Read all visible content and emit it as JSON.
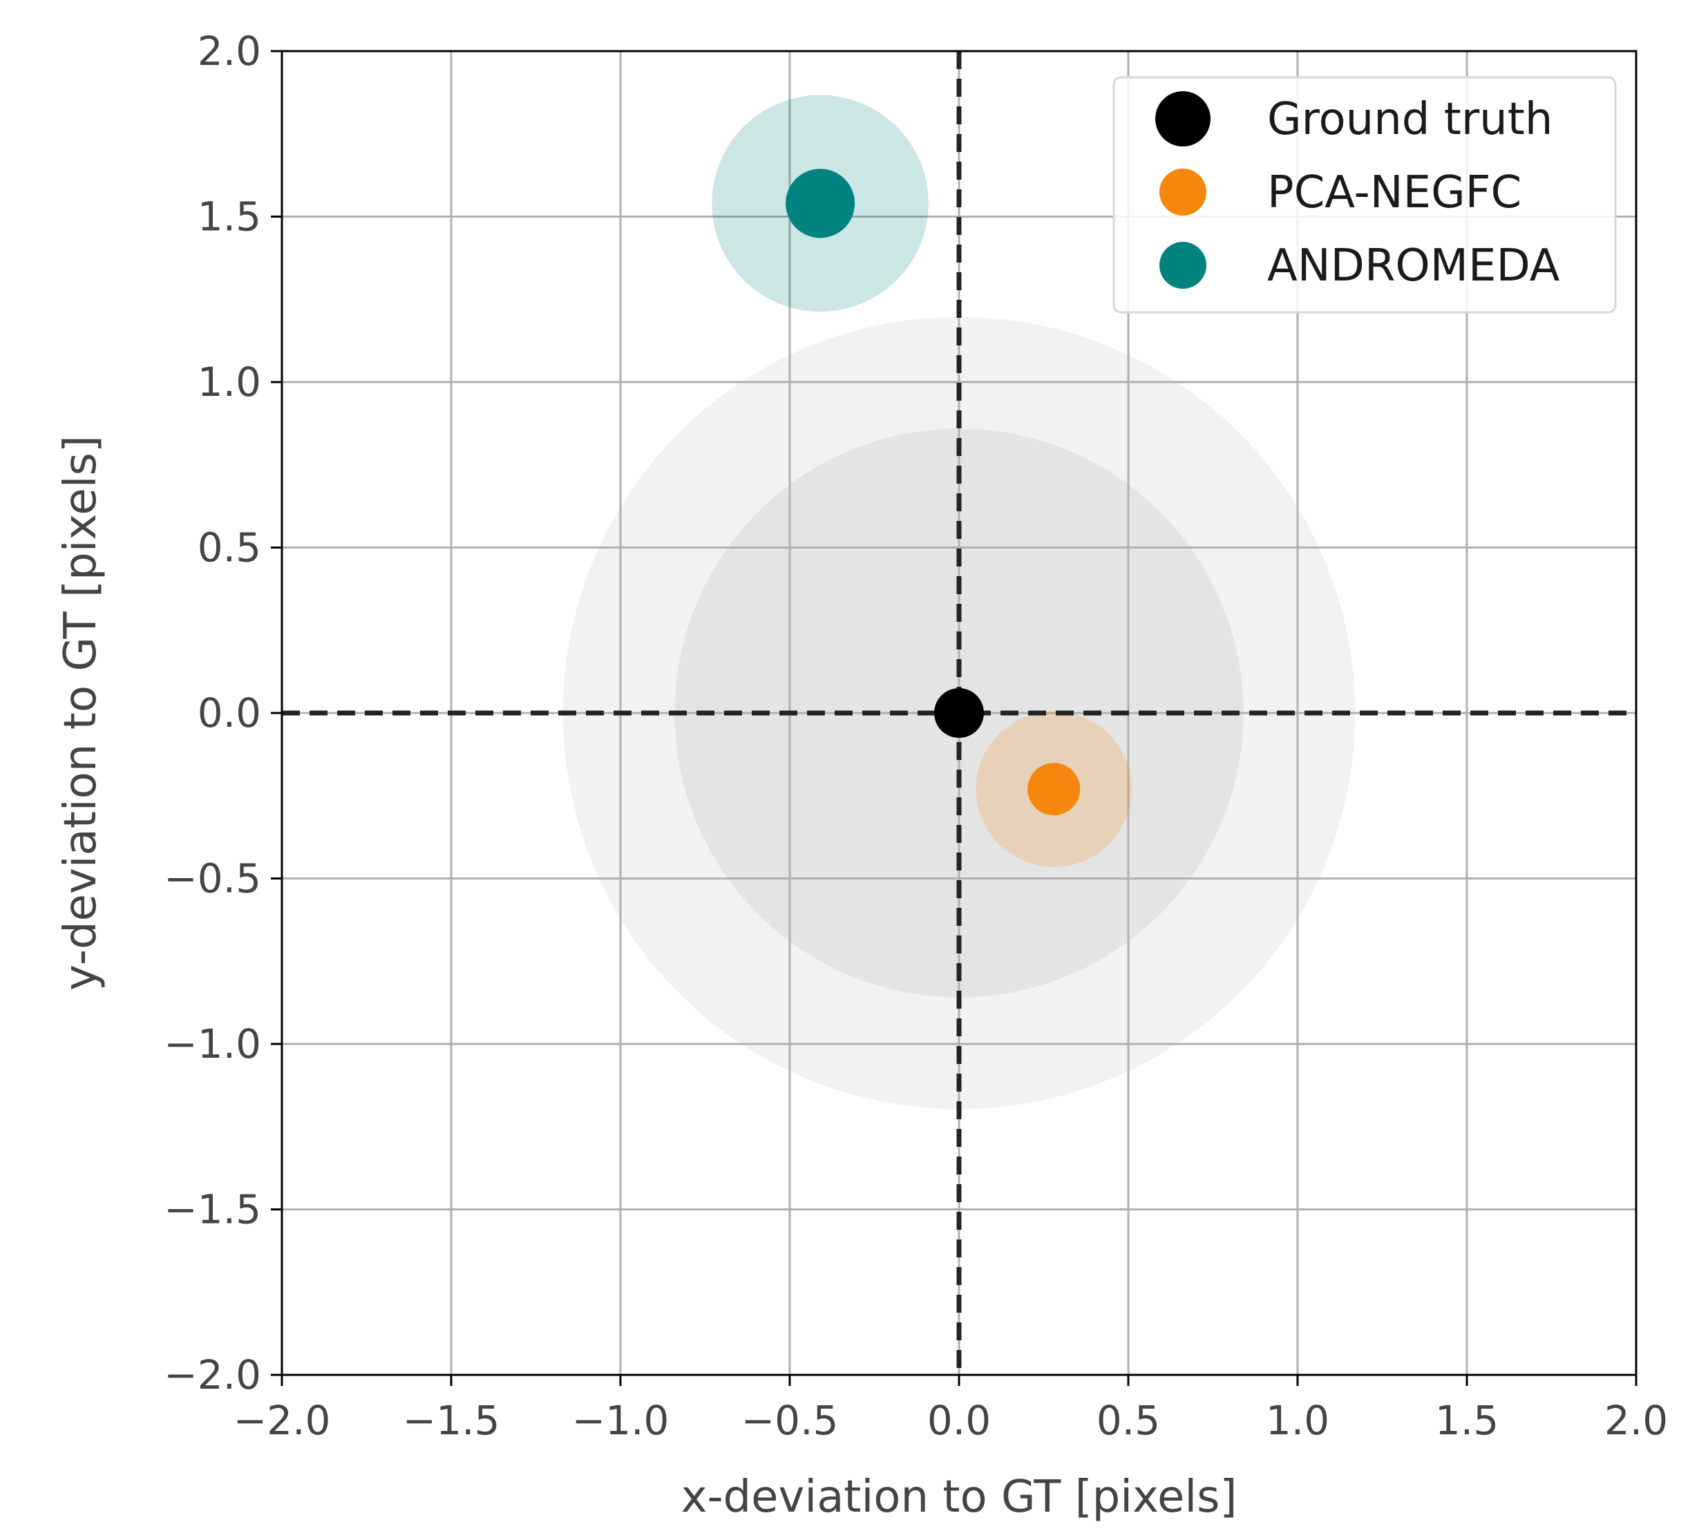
{
  "chart_data": {
    "type": "scatter",
    "title": "",
    "xlabel": "x-deviation to GT [pixels]",
    "ylabel": "y-deviation to GT [pixels]",
    "xlim": [
      -2.0,
      2.0
    ],
    "ylim": [
      -2.0,
      2.0
    ],
    "xticks": [
      "−2.0",
      "−1.5",
      "−1.0",
      "−0.5",
      "0.0",
      "0.5",
      "1.0",
      "1.5",
      "2.0"
    ],
    "yticks": [
      "−2.0",
      "−1.5",
      "−1.0",
      "−0.5",
      "0.0",
      "0.5",
      "1.0",
      "1.5",
      "2.0"
    ],
    "grid": true,
    "legend_position": "top-right",
    "reference_lines": [
      {
        "axis": "x",
        "value": 0,
        "style": "dashed",
        "color": "#222222"
      },
      {
        "axis": "y",
        "value": 0,
        "style": "dashed",
        "color": "#222222"
      }
    ],
    "regions": [
      {
        "center": [
          0,
          0
        ],
        "radius": 1.17,
        "color": "#cccccc",
        "opacity": 0.25
      },
      {
        "center": [
          0,
          0
        ],
        "radius": 0.84,
        "color": "#bbbbbb",
        "opacity": 0.25
      }
    ],
    "series": [
      {
        "name": "Ground truth",
        "color": "#000000",
        "points": [
          {
            "x": 0.0,
            "y": 0.0,
            "uncertainty": 0
          }
        ]
      },
      {
        "name": "PCA-NEGFC",
        "color": "#f5870f",
        "points": [
          {
            "x": 0.28,
            "y": -0.23,
            "uncertainty": 0.23
          }
        ]
      },
      {
        "name": "ANDROMEDA",
        "color": "#00827e",
        "points": [
          {
            "x": -0.41,
            "y": 1.54,
            "uncertainty": 0.32
          }
        ]
      }
    ]
  }
}
